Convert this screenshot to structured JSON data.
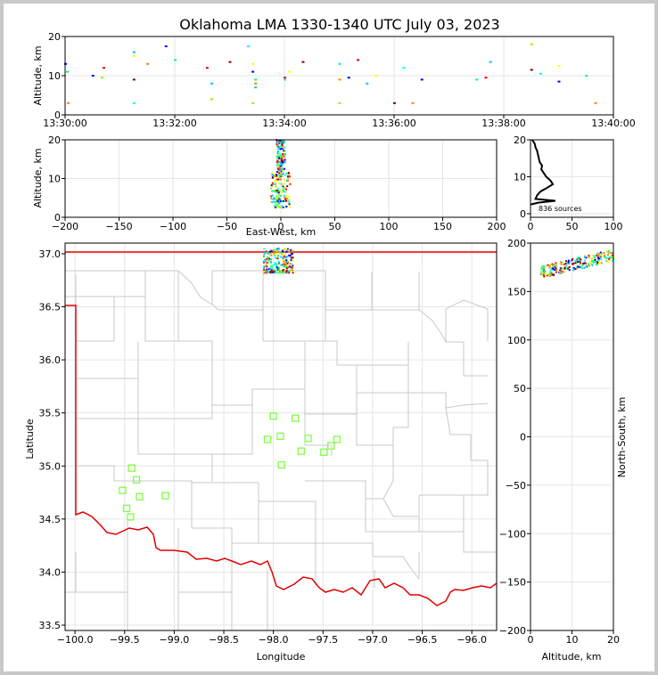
{
  "title": "Oklahoma LMA 1330-1340 UTC July 03, 2023",
  "colors": {
    "frame_bg": "#c8c8c8",
    "state_border": "#e00000",
    "county_lines": "#c8c8c8",
    "stations": "#80ff40",
    "sources_palette": [
      "#0000ff",
      "#00c0ff",
      "#00ffff",
      "#00ff80",
      "#80ff00",
      "#ffff00",
      "#ff8000",
      "#ff0000",
      "#800000"
    ]
  },
  "chart_data": [
    {
      "id": "time-altitude",
      "type": "scatter",
      "ylabel": "Altitude, km",
      "xlim": [
        "13:30:00",
        "13:40:00"
      ],
      "ylim": [
        0,
        20
      ],
      "x_ticks": [
        "13:30:00",
        "13:32:00",
        "13:34:00",
        "13:36:00",
        "13:38:00",
        "13:40:00"
      ],
      "y_ticks": [
        "0",
        "10",
        "20"
      ],
      "grid": true,
      "points": [
        {
          "t": "13:30:00",
          "alt": 13
        },
        {
          "t": "13:30:02",
          "alt": 11
        },
        {
          "t": "13:30:03",
          "alt": 3
        },
        {
          "t": "13:30:30",
          "alt": 10
        },
        {
          "t": "13:30:40",
          "alt": 9.5
        },
        {
          "t": "13:30:42",
          "alt": 12
        },
        {
          "t": "13:31:15",
          "alt": 16
        },
        {
          "t": "13:31:15",
          "alt": 15
        },
        {
          "t": "13:31:15",
          "alt": 9
        },
        {
          "t": "13:31:15",
          "alt": 3
        },
        {
          "t": "13:31:30",
          "alt": 13
        },
        {
          "t": "13:31:50",
          "alt": 17.5
        },
        {
          "t": "13:32:00",
          "alt": 14
        },
        {
          "t": "13:32:35",
          "alt": 12
        },
        {
          "t": "13:32:40",
          "alt": 8
        },
        {
          "t": "13:32:40",
          "alt": 4
        },
        {
          "t": "13:33:00",
          "alt": 13.5
        },
        {
          "t": "13:33:20",
          "alt": 17.5
        },
        {
          "t": "13:33:25",
          "alt": 13
        },
        {
          "t": "13:33:25",
          "alt": 11
        },
        {
          "t": "13:33:28",
          "alt": 9
        },
        {
          "t": "13:33:28",
          "alt": 8
        },
        {
          "t": "13:33:28",
          "alt": 7
        },
        {
          "t": "13:33:25",
          "alt": 3
        },
        {
          "t": "13:34:00",
          "alt": 9.5
        },
        {
          "t": "13:34:00",
          "alt": 9
        },
        {
          "t": "13:34:05",
          "alt": 11
        },
        {
          "t": "13:34:20",
          "alt": 13.5
        },
        {
          "t": "13:35:00",
          "alt": 13
        },
        {
          "t": "13:35:00",
          "alt": 9
        },
        {
          "t": "13:35:10",
          "alt": 9.5
        },
        {
          "t": "13:35:00",
          "alt": 3
        },
        {
          "t": "13:35:20",
          "alt": 14
        },
        {
          "t": "13:35:30",
          "alt": 8
        },
        {
          "t": "13:35:40",
          "alt": 10
        },
        {
          "t": "13:36:00",
          "alt": 3
        },
        {
          "t": "13:36:10",
          "alt": 12
        },
        {
          "t": "13:36:20",
          "alt": 3
        },
        {
          "t": "13:36:30",
          "alt": 9
        },
        {
          "t": "13:37:30",
          "alt": 9
        },
        {
          "t": "13:37:40",
          "alt": 9.5
        },
        {
          "t": "13:37:45",
          "alt": 13.5
        },
        {
          "t": "13:38:30",
          "alt": 18
        },
        {
          "t": "13:38:30",
          "alt": 11.5
        },
        {
          "t": "13:38:40",
          "alt": 10.5
        },
        {
          "t": "13:39:00",
          "alt": 12.5
        },
        {
          "t": "13:39:00",
          "alt": 8.5
        },
        {
          "t": "13:39:30",
          "alt": 10
        },
        {
          "t": "13:39:40",
          "alt": 3
        }
      ]
    },
    {
      "id": "ew-altitude",
      "type": "scatter",
      "xlabel": "East-West, km",
      "ylabel": "Altitude, km",
      "xlim": [
        -200,
        200
      ],
      "ylim": [
        0,
        20
      ],
      "x_ticks": [
        "−200",
        "−150",
        "−100",
        "−50",
        "0",
        "50",
        "100",
        "150",
        "200"
      ],
      "y_ticks": [
        "0",
        "10",
        "20"
      ],
      "grid": true,
      "cluster": {
        "x_range": [
          -15,
          8
        ],
        "alt_range": [
          2.5,
          20
        ],
        "center_x": 0
      }
    },
    {
      "id": "altitude-histogram",
      "type": "line",
      "annotation": "836 sources",
      "xlim": [
        0,
        100
      ],
      "ylim": [
        0,
        20
      ],
      "x_ticks": [
        "0",
        "50",
        "100"
      ],
      "y_ticks": [
        "0",
        "10",
        "20"
      ],
      "grid": true,
      "profile": [
        {
          "alt": 20,
          "n": 2
        },
        {
          "alt": 19,
          "n": 5
        },
        {
          "alt": 18,
          "n": 6
        },
        {
          "alt": 17,
          "n": 8
        },
        {
          "alt": 16,
          "n": 9
        },
        {
          "alt": 15,
          "n": 10
        },
        {
          "alt": 14,
          "n": 11
        },
        {
          "alt": 13,
          "n": 14
        },
        {
          "alt": 12,
          "n": 13
        },
        {
          "alt": 11,
          "n": 16
        },
        {
          "alt": 10,
          "n": 19
        },
        {
          "alt": 9,
          "n": 24
        },
        {
          "alt": 8,
          "n": 27
        },
        {
          "alt": 7,
          "n": 20
        },
        {
          "alt": 6,
          "n": 12
        },
        {
          "alt": 5,
          "n": 8
        },
        {
          "alt": 4,
          "n": 6
        },
        {
          "alt": 3.5,
          "n": 30
        },
        {
          "alt": 3,
          "n": 10
        },
        {
          "alt": 2.5,
          "n": 0
        }
      ]
    },
    {
      "id": "plan-view",
      "type": "scatter",
      "xlabel": "Longitude",
      "ylabel": "Latitude",
      "xlim": [
        -100.1,
        -95.75
      ],
      "ylim": [
        33.45,
        37.1
      ],
      "x_ticks": [
        "−100.0",
        "−99.5",
        "−99.0",
        "−98.5",
        "−98.0",
        "−97.5",
        "−97.0",
        "−96.5",
        "−96.0"
      ],
      "y_ticks": [
        "33.5",
        "34.0",
        "34.5",
        "35.0",
        "35.5",
        "36.0",
        "36.5",
        "37.0"
      ],
      "sources_cluster": {
        "lon_range": [
          -98.1,
          -97.8
        ],
        "lat_range": [
          36.82,
          37.05
        ]
      },
      "stations": [
        {
          "lon": -98.0,
          "lat": 35.47
        },
        {
          "lon": -97.78,
          "lat": 35.45
        },
        {
          "lon": -98.06,
          "lat": 35.25
        },
        {
          "lon": -97.93,
          "lat": 35.28
        },
        {
          "lon": -97.65,
          "lat": 35.26
        },
        {
          "lon": -97.36,
          "lat": 35.25
        },
        {
          "lon": -97.42,
          "lat": 35.19
        },
        {
          "lon": -97.72,
          "lat": 35.14
        },
        {
          "lon": -97.49,
          "lat": 35.13
        },
        {
          "lon": -97.92,
          "lat": 35.01
        },
        {
          "lon": -99.43,
          "lat": 34.98
        },
        {
          "lon": -99.38,
          "lat": 34.87
        },
        {
          "lon": -99.52,
          "lat": 34.77
        },
        {
          "lon": -99.09,
          "lat": 34.72
        },
        {
          "lon": -99.35,
          "lat": 34.71
        },
        {
          "lon": -99.48,
          "lat": 34.6
        },
        {
          "lon": -99.44,
          "lat": 34.52
        }
      ]
    },
    {
      "id": "altitude-ns",
      "type": "scatter",
      "xlabel": "Altitude, km",
      "ylabel": "North-South, km",
      "xlim": [
        0,
        20
      ],
      "ylim": [
        -200,
        200
      ],
      "x_ticks": [
        "0",
        "10",
        "20"
      ],
      "y_ticks": [
        "−200",
        "−150",
        "−100",
        "−50",
        "0",
        "50",
        "100",
        "150",
        "200"
      ],
      "cluster": {
        "alt_range": [
          2.5,
          20
        ],
        "ns_range": [
          165,
          200
        ]
      }
    }
  ]
}
